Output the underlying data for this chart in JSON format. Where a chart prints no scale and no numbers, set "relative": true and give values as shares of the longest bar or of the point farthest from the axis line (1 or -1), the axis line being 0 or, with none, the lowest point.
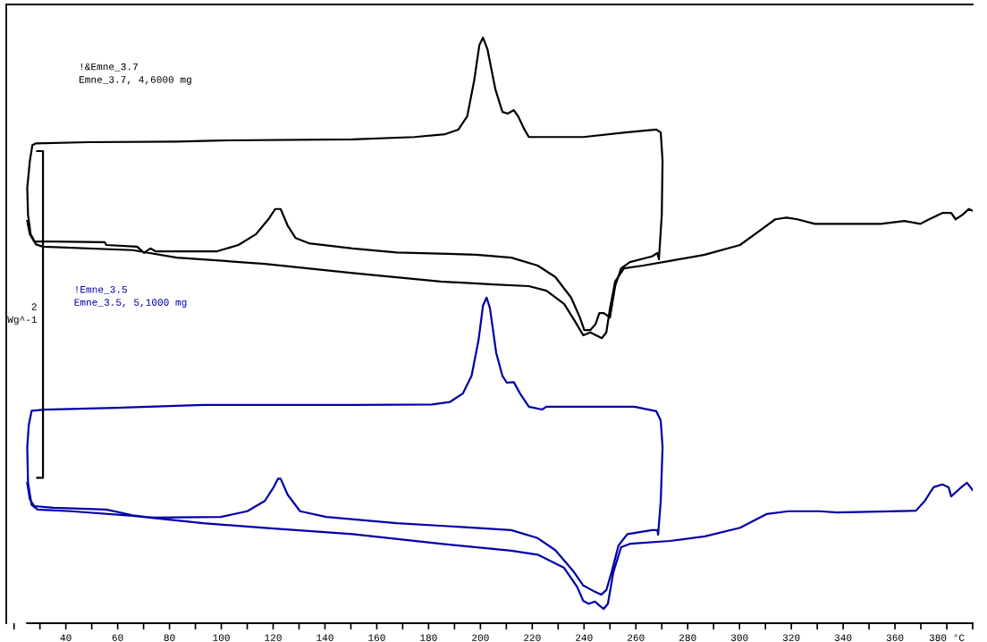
{
  "chart_data": {
    "type": "line",
    "relative": true,
    "grid": false,
    "legend": false,
    "marker": "none",
    "line_style": "solid",
    "xlim": [
      17,
      390
    ],
    "xticks": [
      40,
      60,
      80,
      100,
      120,
      140,
      160,
      180,
      200,
      220,
      240,
      260,
      280,
      300,
      320,
      340,
      360,
      {
        "value": 380,
        "label": "380 °C"
      }
    ],
    "annotations": [
      "2\nWg^-1"
    ],
    "series": [
      {
        "name": "!&Emne_3.7\nEmne_3.7, 4,6000 mg",
        "color": "#000000",
        "x": [
          25.1,
          26.1,
          27.8,
          35.2,
          55.0,
          55.6,
          67.5,
          70.2,
          72.6,
          74.6,
          98.4,
          106.6,
          113.4,
          118.5,
          120.8,
          122.9,
          125.6,
          128.7,
          133.8,
          150.7,
          167.7,
          198.3,
          211.9,
          222.1,
          228.9,
          235.0,
          238.4,
          240.1,
          242.4,
          244.5,
          245.9,
          247.6,
          250.0,
          252.0,
          254.3,
          257.7,
          266.2,
          268.3,
          268.9,
          270.0,
          270.3,
          269.6,
          267.9,
          256.0,
          239.7,
          218.7,
          217.0,
          214.6,
          212.9,
          210.5,
          208.5,
          205.8,
          202.7,
          201.0,
          199.6,
          197.6,
          194.9,
          191.5,
          186.4,
          174.5,
          150.7,
          99.8,
          82.8,
          48.8,
          28.5,
          27.1,
          26.1,
          25.1,
          25.4,
          26.4,
          28.5,
          31.2,
          65.8,
          82.8,
          116.8,
          150.7,
          184.7,
          205.1,
          218.7,
          225.5,
          232.3,
          236.3,
          239.7,
          242.4,
          246.9,
          248.6,
          250.0,
          252.0,
          255.4,
          262.8,
          273.0,
          286.6,
          300.2,
          306.9,
          313.8,
          318.2,
          322.3,
          329.1,
          354.5,
          363.7,
          369.8,
          373.2,
          378.3,
          381.7,
          383.4,
          386.1,
          388.5,
          390.0
        ],
        "values": [
          0.679,
          0.656,
          0.643,
          0.643,
          0.642,
          0.637,
          0.634,
          0.623,
          0.631,
          0.626,
          0.626,
          0.637,
          0.656,
          0.684,
          0.7,
          0.7,
          0.671,
          0.649,
          0.64,
          0.631,
          0.624,
          0.62,
          0.615,
          0.601,
          0.581,
          0.545,
          0.51,
          0.488,
          0.488,
          0.499,
          0.518,
          0.518,
          0.51,
          0.565,
          0.596,
          0.607,
          0.617,
          0.623,
          0.612,
          0.69,
          0.784,
          0.834,
          0.839,
          0.834,
          0.826,
          0.826,
          0.839,
          0.862,
          0.873,
          0.867,
          0.87,
          0.909,
          0.98,
          1.0,
          0.987,
          0.925,
          0.862,
          0.839,
          0.831,
          0.826,
          0.822,
          0.82,
          0.818,
          0.817,
          0.815,
          0.812,
          0.784,
          0.737,
          0.69,
          0.656,
          0.638,
          0.634,
          0.628,
          0.615,
          0.604,
          0.588,
          0.573,
          0.568,
          0.565,
          0.557,
          0.534,
          0.505,
          0.479,
          0.484,
          0.474,
          0.484,
          0.526,
          0.573,
          0.596,
          0.601,
          0.609,
          0.62,
          0.637,
          0.659,
          0.682,
          0.685,
          0.682,
          0.674,
          0.674,
          0.679,
          0.674,
          0.682,
          0.693,
          0.693,
          0.682,
          0.69,
          0.7,
          0.697
        ]
      },
      {
        "name": "!Emne_3.5\nEmne_3.5, 5,1000 mg",
        "color": "#0000a8",
        "x": [
          25.1,
          26.1,
          27.8,
          35.2,
          55.6,
          65.8,
          70.9,
          74.3,
          99.8,
          110.0,
          116.8,
          120.2,
          121.9,
          122.9,
          125.6,
          130.4,
          140.5,
          167.7,
          198.3,
          211.9,
          222.1,
          228.9,
          235.7,
          239.7,
          244.2,
          246.6,
          248.6,
          250.6,
          253.3,
          256.7,
          266.2,
          268.3,
          268.6,
          269.6,
          270.3,
          269.6,
          267.9,
          259.4,
          225.5,
          223.8,
          218.7,
          215.3,
          212.9,
          210.2,
          208.5,
          206.1,
          203.7,
          202.4,
          201.0,
          199.3,
          196.6,
          193.2,
          188.1,
          181.3,
          150.7,
          93.0,
          59.0,
          31.8,
          26.8,
          25.7,
          25.1,
          25.4,
          26.8,
          29.1,
          42.0,
          65.8,
          93.0,
          116.8,
          150.7,
          184.7,
          211.9,
          222.1,
          232.3,
          237.4,
          239.7,
          241.8,
          244.2,
          245.9,
          247.6,
          249.2,
          251.3,
          254.3,
          257.7,
          273.0,
          286.6,
          300.2,
          310.4,
          318.9,
          330.8,
          337.6,
          368.1,
          371.5,
          374.9,
          378.3,
          380.7,
          381.7,
          385.1,
          387.8,
          390.0
        ],
        "values": [
          0.221,
          0.192,
          0.18,
          0.177,
          0.174,
          0.164,
          0.161,
          0.16,
          0.161,
          0.171,
          0.189,
          0.213,
          0.228,
          0.228,
          0.2,
          0.171,
          0.161,
          0.15,
          0.142,
          0.138,
          0.124,
          0.103,
          0.067,
          0.041,
          0.03,
          0.025,
          0.033,
          0.064,
          0.111,
          0.131,
          0.138,
          0.138,
          0.13,
          0.189,
          0.283,
          0.33,
          0.346,
          0.354,
          0.354,
          0.349,
          0.354,
          0.377,
          0.397,
          0.396,
          0.408,
          0.448,
          0.526,
          0.545,
          0.531,
          0.471,
          0.408,
          0.377,
          0.362,
          0.358,
          0.357,
          0.357,
          0.352,
          0.349,
          0.347,
          0.322,
          0.283,
          0.221,
          0.182,
          0.174,
          0.171,
          0.163,
          0.15,
          0.142,
          0.131,
          0.114,
          0.102,
          0.095,
          0.072,
          0.038,
          0.014,
          0.009,
          0.013,
          0.006,
          0.0,
          0.009,
          0.064,
          0.108,
          0.114,
          0.119,
          0.127,
          0.142,
          0.166,
          0.171,
          0.171,
          0.169,
          0.172,
          0.189,
          0.213,
          0.218,
          0.213,
          0.197,
          0.211,
          0.221,
          0.208
        ]
      }
    ]
  }
}
